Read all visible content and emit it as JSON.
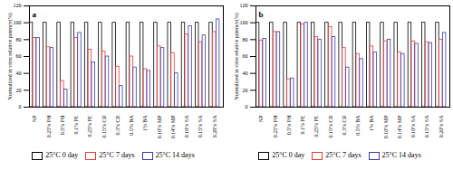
{
  "chart_data": [
    {
      "type": "bar",
      "title": "a",
      "categories": [
        "NP",
        "0.25% PH",
        "0.5% PH",
        "0.1% PE",
        "0.25% PE",
        "0.15% CR",
        "0.3% CR",
        "0.5% BA",
        "1% BA",
        "0.10% MP",
        "0.14% MP",
        "0.10% SA",
        "0.15% SA",
        "0.20% SA"
      ],
      "y_label": "Normalized in vitro relative potency(%)",
      "series": [
        {
          "name": "25°C 0 day",
          "color": "#000000",
          "values": [
            100,
            100,
            100,
            100,
            100,
            100,
            100,
            100,
            100,
            100,
            100,
            100,
            100,
            100
          ]
        },
        {
          "name": "25°C 7 days",
          "color": "#e8383a",
          "values": [
            82,
            71,
            31,
            82,
            68,
            66,
            48,
            60,
            45,
            72,
            64,
            86,
            77,
            89
          ]
        },
        {
          "name": "25°C 14 days",
          "color": "#3a3aa8",
          "values": [
            82,
            70,
            21,
            88,
            53,
            60,
            25,
            47,
            43,
            70,
            40,
            96,
            85,
            104
          ]
        }
      ],
      "ylim": [
        0,
        120
      ],
      "yticks": [
        0,
        20,
        40,
        60,
        80,
        100,
        120
      ],
      "grid": false,
      "legend": "bottom"
    },
    {
      "type": "bar",
      "title": "b",
      "categories": [
        "NP",
        "0.25% PH",
        "0.5% PH",
        "0.1% PE",
        "0.25% PE",
        "0.15% CR",
        "0.3% CR",
        "0.5% BA",
        "1% BA",
        "0.10% MP",
        "0.14% MP",
        "0.10% SA",
        "0.15% SA",
        "0.20% SA"
      ],
      "y_label": "Normalized in vitro relative potency(%)",
      "series": [
        {
          "name": "25°C 0 day",
          "color": "#000000",
          "values": [
            100,
            100,
            100,
            100,
            100,
            100,
            100,
            100,
            100,
            100,
            100,
            100,
            100,
            100
          ]
        },
        {
          "name": "25°C 7 days",
          "color": "#e8383a",
          "values": [
            79,
            89,
            33,
            98,
            83,
            95,
            70,
            63,
            72,
            78,
            65,
            78,
            77,
            80
          ]
        },
        {
          "name": "25°C 14 days",
          "color": "#3a3aa8",
          "values": [
            81,
            89,
            34,
            100,
            80,
            83,
            47,
            57,
            65,
            80,
            63,
            75,
            76,
            88
          ]
        }
      ],
      "ylim": [
        0,
        120
      ],
      "yticks": [
        0,
        20,
        40,
        60,
        80,
        100,
        120
      ],
      "grid": false,
      "legend": "bottom"
    }
  ]
}
